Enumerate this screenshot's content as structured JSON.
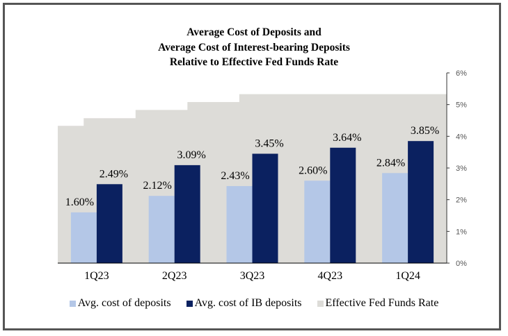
{
  "chart_data": {
    "type": "bar",
    "title": [
      "Average Cost of Deposits and",
      "Average Cost of Interest-bearing Deposits",
      "Relative to Effective Fed Funds Rate"
    ],
    "categories": [
      "1Q23",
      "2Q23",
      "3Q23",
      "4Q23",
      "1Q24"
    ],
    "series": [
      {
        "name": "Avg. cost of deposits",
        "type": "bar",
        "color": "#B4C7E7",
        "values": [
          1.6,
          2.12,
          2.43,
          2.6,
          2.84
        ],
        "labels": [
          "1.60%",
          "2.12%",
          "2.43%",
          "2.60%",
          "2.84%"
        ]
      },
      {
        "name": "Avg. cost of IB deposits",
        "type": "bar",
        "color": "#0B2160",
        "values": [
          2.49,
          3.09,
          3.45,
          3.64,
          3.85
        ],
        "labels": [
          "2.49%",
          "3.09%",
          "3.45%",
          "3.64%",
          "3.85%"
        ]
      },
      {
        "name": "Effective Fed Funds Rate",
        "type": "area-step",
        "color": "#DDDCD8",
        "monthly_values": [
          4.33,
          4.57,
          4.57,
          4.83,
          4.83,
          5.08,
          5.08,
          5.33,
          5.33,
          5.33,
          5.33,
          5.33,
          5.33,
          5.33,
          5.33
        ]
      }
    ],
    "yaxis": {
      "position": "right",
      "ylim": [
        0,
        6
      ],
      "ticks": [
        "0%",
        "1%",
        "2%",
        "3%",
        "4%",
        "5%",
        "6%"
      ]
    },
    "grid": false,
    "legend": "bottom"
  }
}
